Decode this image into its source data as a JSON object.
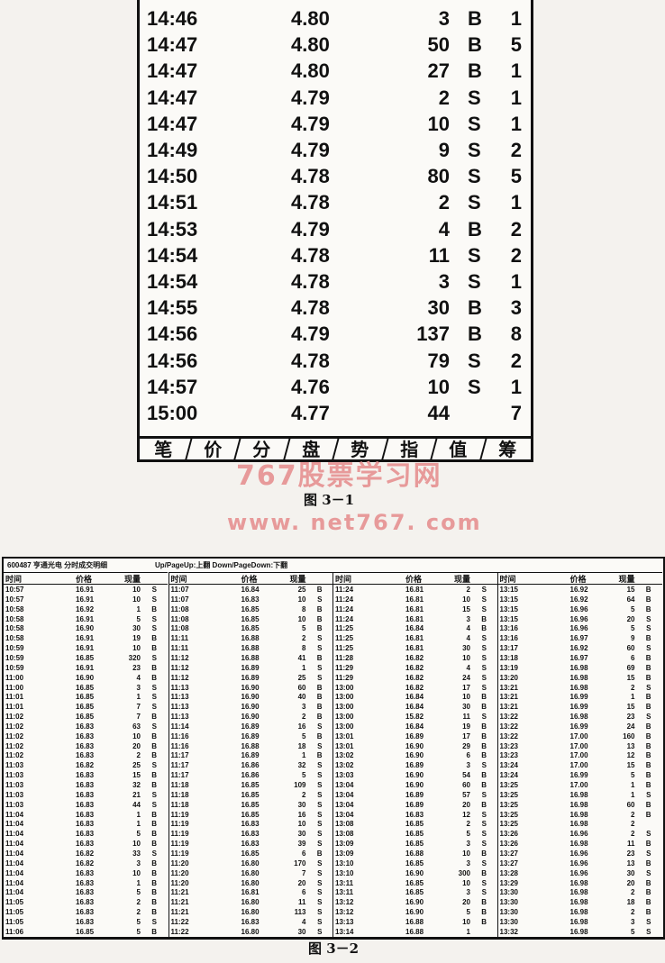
{
  "figure1": {
    "rows": [
      [
        "14:46",
        "4.80",
        "3",
        "B",
        "1"
      ],
      [
        "14:47",
        "4.80",
        "50",
        "B",
        "5"
      ],
      [
        "14:47",
        "4.80",
        "27",
        "B",
        "1"
      ],
      [
        "14:47",
        "4.79",
        "2",
        "S",
        "1"
      ],
      [
        "14:47",
        "4.79",
        "10",
        "S",
        "1"
      ],
      [
        "14:49",
        "4.79",
        "9",
        "S",
        "2"
      ],
      [
        "14:50",
        "4.78",
        "80",
        "S",
        "5"
      ],
      [
        "14:51",
        "4.78",
        "2",
        "S",
        "1"
      ],
      [
        "14:53",
        "4.79",
        "4",
        "B",
        "2"
      ],
      [
        "14:54",
        "4.78",
        "11",
        "S",
        "2"
      ],
      [
        "14:54",
        "4.78",
        "3",
        "S",
        "1"
      ],
      [
        "14:55",
        "4.78",
        "30",
        "B",
        "3"
      ],
      [
        "14:56",
        "4.79",
        "137",
        "B",
        "8"
      ],
      [
        "14:56",
        "4.78",
        "79",
        "S",
        "2"
      ],
      [
        "14:57",
        "4.76",
        "10",
        "S",
        "1"
      ],
      [
        "15:00",
        "4.77",
        "44",
        "",
        "7"
      ]
    ],
    "tabs": [
      "笔",
      "价",
      "分",
      "盘",
      "势",
      "指",
      "值",
      "筹"
    ],
    "caption": "图 3－1"
  },
  "watermark": {
    "line1": "767股票学习网",
    "line2": "www. net767. com",
    "color": "#e79a9a"
  },
  "figure2": {
    "title": "600487 亨通光电 分时成交明细",
    "hint": "Up/PageUp:上翻 Down/PageDown:下翻",
    "headers": {
      "time": "时间",
      "price": "价格",
      "volume": "现量"
    },
    "groups": [
      [
        [
          "10:57",
          "16.91",
          "10",
          "S"
        ],
        [
          "10:57",
          "16.91",
          "10",
          "S"
        ],
        [
          "10:58",
          "16.92",
          "1",
          "B"
        ],
        [
          "10:58",
          "16.91",
          "5",
          "S"
        ],
        [
          "10:58",
          "16.90",
          "30",
          "S"
        ],
        [
          "10:58",
          "16.91",
          "19",
          "B"
        ],
        [
          "10:59",
          "16.91",
          "10",
          "B"
        ],
        [
          "10:59",
          "16.85",
          "320",
          "S"
        ],
        [
          "10:59",
          "16.91",
          "23",
          "B"
        ],
        [
          "11:00",
          "16.90",
          "4",
          "B"
        ],
        [
          "11:00",
          "16.85",
          "3",
          "S"
        ],
        [
          "11:01",
          "16.85",
          "1",
          "S"
        ],
        [
          "11:01",
          "16.85",
          "7",
          "S"
        ],
        [
          "11:02",
          "16.85",
          "7",
          "B"
        ],
        [
          "11:02",
          "16.83",
          "63",
          "S"
        ],
        [
          "11:02",
          "16.83",
          "10",
          "B"
        ],
        [
          "11:02",
          "16.83",
          "20",
          "B"
        ],
        [
          "11:02",
          "16.83",
          "2",
          "B"
        ],
        [
          "11:03",
          "16.82",
          "25",
          "S"
        ],
        [
          "11:03",
          "16.83",
          "15",
          "B"
        ],
        [
          "11:03",
          "16.83",
          "32",
          "B"
        ],
        [
          "11:03",
          "16.83",
          "21",
          "S"
        ],
        [
          "11:03",
          "16.83",
          "44",
          "S"
        ],
        [
          "11:04",
          "16.83",
          "1",
          "B"
        ],
        [
          "11:04",
          "16.83",
          "1",
          "B"
        ],
        [
          "11:04",
          "16.83",
          "5",
          "B"
        ],
        [
          "11:04",
          "16.83",
          "10",
          "B"
        ],
        [
          "11:04",
          "16.82",
          "33",
          "S"
        ],
        [
          "11:04",
          "16.82",
          "3",
          "B"
        ],
        [
          "11:04",
          "16.83",
          "10",
          "B"
        ],
        [
          "11:04",
          "16.83",
          "1",
          "B"
        ],
        [
          "11:04",
          "16.83",
          "5",
          "B"
        ],
        [
          "11:05",
          "16.83",
          "2",
          "B"
        ],
        [
          "11:05",
          "16.83",
          "2",
          "B"
        ],
        [
          "11:05",
          "16.83",
          "5",
          "S"
        ],
        [
          "11:06",
          "16.85",
          "5",
          "B"
        ]
      ],
      [
        [
          "11:07",
          "16.84",
          "25",
          "B"
        ],
        [
          "11:07",
          "16.83",
          "10",
          "S"
        ],
        [
          "11:08",
          "16.85",
          "8",
          "B"
        ],
        [
          "11:08",
          "16.85",
          "10",
          "B"
        ],
        [
          "11:08",
          "16.85",
          "5",
          "B"
        ],
        [
          "11:11",
          "16.88",
          "2",
          "S"
        ],
        [
          "11:11",
          "16.88",
          "8",
          "S"
        ],
        [
          "11:12",
          "16.88",
          "41",
          "B"
        ],
        [
          "11:12",
          "16.89",
          "1",
          "S"
        ],
        [
          "11:12",
          "16.89",
          "25",
          "S"
        ],
        [
          "11:13",
          "16.90",
          "60",
          "B"
        ],
        [
          "11:13",
          "16.90",
          "40",
          "B"
        ],
        [
          "11:13",
          "16.90",
          "3",
          "B"
        ],
        [
          "11:13",
          "16.90",
          "2",
          "B"
        ],
        [
          "11:14",
          "16.89",
          "16",
          "S"
        ],
        [
          "11:16",
          "16.89",
          "5",
          "B"
        ],
        [
          "11:16",
          "16.88",
          "18",
          "S"
        ],
        [
          "11:17",
          "16.89",
          "1",
          "B"
        ],
        [
          "11:17",
          "16.86",
          "32",
          "S"
        ],
        [
          "11:17",
          "16.86",
          "5",
          "S"
        ],
        [
          "11:18",
          "16.85",
          "109",
          "S"
        ],
        [
          "11:18",
          "16.85",
          "2",
          "S"
        ],
        [
          "11:18",
          "16.85",
          "30",
          "S"
        ],
        [
          "11:19",
          "16.85",
          "16",
          "S"
        ],
        [
          "11:19",
          "16.83",
          "10",
          "S"
        ],
        [
          "11:19",
          "16.83",
          "30",
          "S"
        ],
        [
          "11:19",
          "16.83",
          "39",
          "S"
        ],
        [
          "11:19",
          "16.85",
          "6",
          "B"
        ],
        [
          "11:20",
          "16.80",
          "170",
          "S"
        ],
        [
          "11:20",
          "16.80",
          "7",
          "S"
        ],
        [
          "11:20",
          "16.80",
          "20",
          "S"
        ],
        [
          "11:21",
          "16.81",
          "6",
          "S"
        ],
        [
          "11:21",
          "16.80",
          "11",
          "S"
        ],
        [
          "11:21",
          "16.80",
          "113",
          "S"
        ],
        [
          "11:22",
          "16.83",
          "4",
          "S"
        ],
        [
          "11:22",
          "16.80",
          "30",
          "S"
        ]
      ],
      [
        [
          "11:24",
          "16.81",
          "2",
          "S"
        ],
        [
          "11:24",
          "16.81",
          "10",
          "S"
        ],
        [
          "11:24",
          "16.81",
          "15",
          "S"
        ],
        [
          "11:24",
          "16.81",
          "3",
          "B"
        ],
        [
          "11:25",
          "16.84",
          "4",
          "B"
        ],
        [
          "11:25",
          "16.81",
          "4",
          "S"
        ],
        [
          "11:25",
          "16.81",
          "30",
          "S"
        ],
        [
          "11:28",
          "16.82",
          "10",
          "S"
        ],
        [
          "11:29",
          "16.82",
          "4",
          "S"
        ],
        [
          "11:29",
          "16.82",
          "24",
          "S"
        ],
        [
          "13:00",
          "16.82",
          "17",
          "S"
        ],
        [
          "13:00",
          "16.84",
          "10",
          "B"
        ],
        [
          "13:00",
          "16.84",
          "30",
          "B"
        ],
        [
          "13:00",
          "15.82",
          "11",
          "S"
        ],
        [
          "13:00",
          "16.84",
          "19",
          "B"
        ],
        [
          "13:01",
          "16.89",
          "17",
          "B"
        ],
        [
          "13:01",
          "16.90",
          "29",
          "B"
        ],
        [
          "13:02",
          "16.90",
          "6",
          "B"
        ],
        [
          "13:02",
          "16.89",
          "3",
          "S"
        ],
        [
          "13:03",
          "16.90",
          "54",
          "B"
        ],
        [
          "13:04",
          "16.90",
          "60",
          "B"
        ],
        [
          "13:04",
          "16.89",
          "57",
          "S"
        ],
        [
          "13:04",
          "16.89",
          "20",
          "B"
        ],
        [
          "13:04",
          "16.83",
          "12",
          "S"
        ],
        [
          "13:08",
          "16.85",
          "2",
          "S"
        ],
        [
          "13:08",
          "16.85",
          "5",
          "S"
        ],
        [
          "13:09",
          "16.85",
          "3",
          "S"
        ],
        [
          "13:09",
          "16.88",
          "10",
          "B"
        ],
        [
          "13:10",
          "16.85",
          "3",
          "S"
        ],
        [
          "13:10",
          "16.90",
          "300",
          "B"
        ],
        [
          "13:11",
          "16.85",
          "10",
          "S"
        ],
        [
          "13:11",
          "16.85",
          "3",
          "S"
        ],
        [
          "13:12",
          "16.90",
          "20",
          "B"
        ],
        [
          "13:12",
          "16.90",
          "5",
          "B"
        ],
        [
          "13:13",
          "16.88",
          "10",
          "B"
        ],
        [
          "13:14",
          "16.88",
          "1",
          ""
        ]
      ],
      [
        [
          "13:15",
          "16.92",
          "15",
          "B"
        ],
        [
          "13:15",
          "16.92",
          "64",
          "B"
        ],
        [
          "13:15",
          "16.96",
          "5",
          "B"
        ],
        [
          "13:15",
          "16.96",
          "20",
          "S"
        ],
        [
          "13:16",
          "16.96",
          "5",
          "S"
        ],
        [
          "13:16",
          "16.97",
          "9",
          "B"
        ],
        [
          "13:17",
          "16.92",
          "60",
          "S"
        ],
        [
          "13:18",
          "16.97",
          "6",
          "B"
        ],
        [
          "13:19",
          "16.98",
          "69",
          "B"
        ],
        [
          "13:20",
          "16.98",
          "15",
          "B"
        ],
        [
          "13:21",
          "16.98",
          "2",
          "S"
        ],
        [
          "13:21",
          "16.99",
          "1",
          "B"
        ],
        [
          "13:21",
          "16.99",
          "15",
          "B"
        ],
        [
          "13:22",
          "16.98",
          "23",
          "S"
        ],
        [
          "13:22",
          "16.99",
          "24",
          "B"
        ],
        [
          "13:22",
          "17.00",
          "160",
          "B"
        ],
        [
          "13:23",
          "17.00",
          "13",
          "B"
        ],
        [
          "13:23",
          "17.00",
          "12",
          "B"
        ],
        [
          "13:24",
          "17.00",
          "15",
          "B"
        ],
        [
          "13:24",
          "16.99",
          "5",
          "B"
        ],
        [
          "13:25",
          "17.00",
          "1",
          "B"
        ],
        [
          "13:25",
          "16.98",
          "1",
          "S"
        ],
        [
          "13:25",
          "16.98",
          "60",
          "B"
        ],
        [
          "13:25",
          "16.98",
          "2",
          "B"
        ],
        [
          "13:25",
          "16.98",
          "2",
          ""
        ],
        [
          "13:26",
          "16.96",
          "2",
          "S"
        ],
        [
          "13:26",
          "16.98",
          "11",
          "B"
        ],
        [
          "13:27",
          "16.96",
          "23",
          "S"
        ],
        [
          "13:27",
          "16.96",
          "13",
          "B"
        ],
        [
          "13:28",
          "16.96",
          "30",
          "S"
        ],
        [
          "13:29",
          "16.98",
          "20",
          "B"
        ],
        [
          "13:30",
          "16.98",
          "2",
          "B"
        ],
        [
          "13:30",
          "16.98",
          "18",
          "B"
        ],
        [
          "13:30",
          "16.98",
          "2",
          "B"
        ],
        [
          "13:30",
          "16.98",
          "3",
          "S"
        ],
        [
          "13:32",
          "16.98",
          "5",
          "S"
        ]
      ]
    ],
    "caption": "图 3－2"
  }
}
